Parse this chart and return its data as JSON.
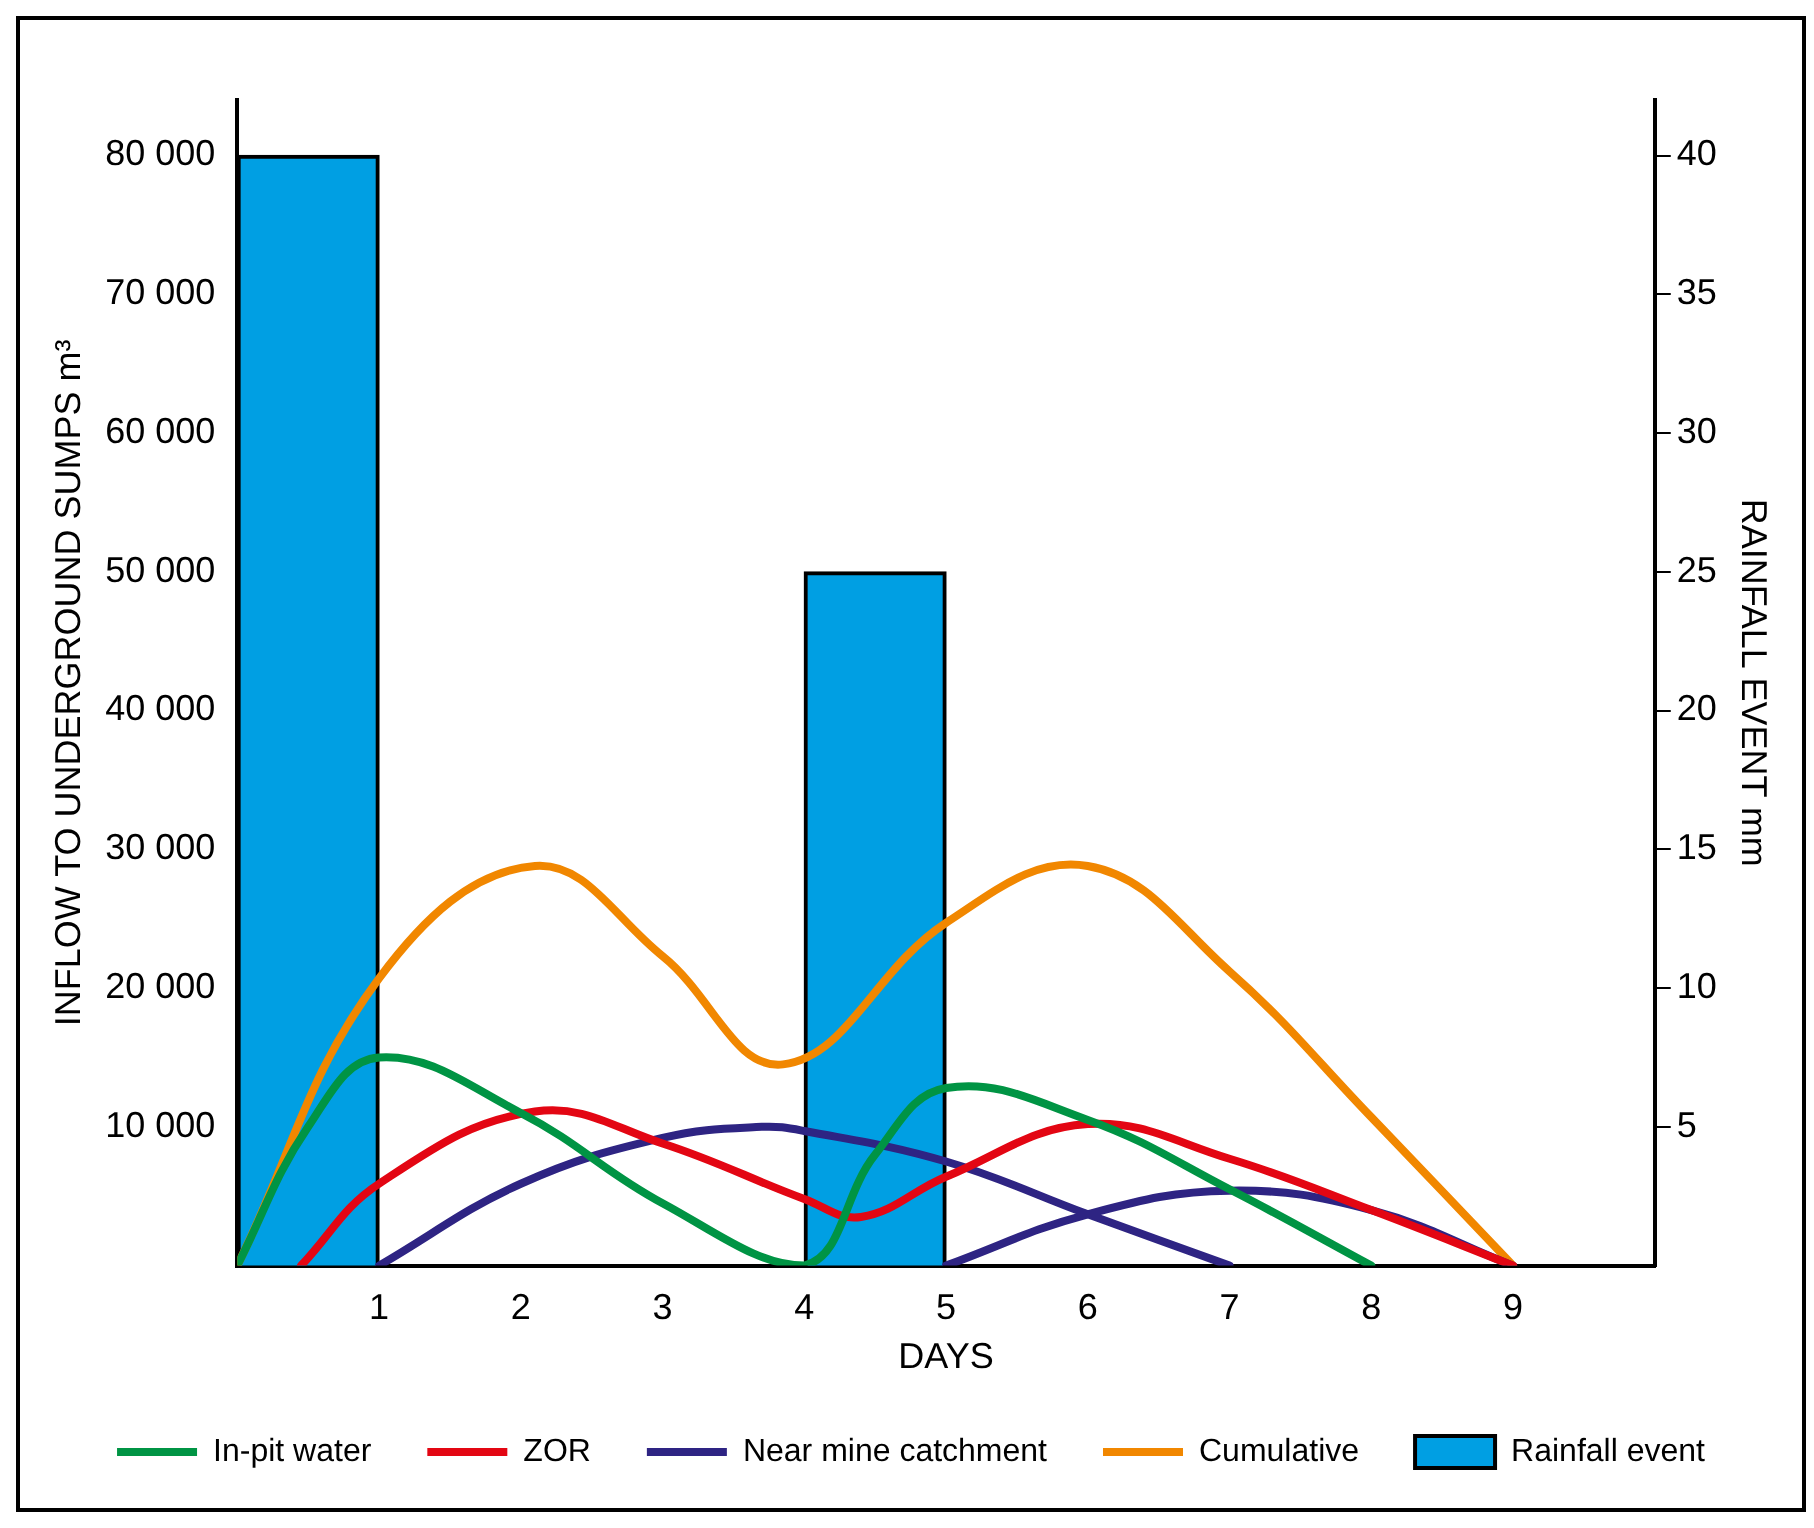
{
  "chart_data": {
    "type": "line",
    "xlabel": "DAYS",
    "ylabel": "INFLOW TO UNDERGROUND SUMPS m³",
    "y2label": "RAINFALL EVENT mm",
    "xlim": [
      0,
      10
    ],
    "xticks": [
      1,
      2,
      3,
      4,
      5,
      6,
      7,
      8,
      9
    ],
    "ylim": [
      0,
      84000
    ],
    "yticks": [
      {
        "value": 10000,
        "label": "10 000"
      },
      {
        "value": 20000,
        "label": "20 000"
      },
      {
        "value": 30000,
        "label": "30 000"
      },
      {
        "value": 40000,
        "label": "40 000"
      },
      {
        "value": 50000,
        "label": "50 000"
      },
      {
        "value": 60000,
        "label": "60 000"
      },
      {
        "value": 70000,
        "label": "70 000"
      },
      {
        "value": 80000,
        "label": "80 000"
      }
    ],
    "y2lim": [
      0,
      42
    ],
    "y2ticks": [
      5,
      10,
      15,
      20,
      25,
      30,
      35,
      40
    ],
    "series": [
      {
        "name": "In-pit water",
        "color": "#009444",
        "x": [
          0,
          0.5,
          1,
          2,
          3,
          4,
          4.5,
          5,
          6,
          7,
          8
        ],
        "values": [
          0,
          10000,
          15000,
          11000,
          4500,
          0,
          8000,
          12800,
          10500,
          5500,
          0
        ]
      },
      {
        "name": "ZOR",
        "color": "#e30613",
        "x": [
          0.45,
          1,
          2.1,
          3,
          4,
          4.4,
          5,
          6,
          7,
          8,
          9
        ],
        "values": [
          0,
          5900,
          11100,
          8800,
          4800,
          3500,
          6400,
          10200,
          7700,
          4000,
          0
        ]
      },
      {
        "name": "Near mine catchment",
        "color": "#2e2483",
        "x": [
          1,
          2,
          3,
          3.7,
          4,
          5,
          6,
          7,
          null,
          5,
          6,
          7,
          8,
          9
        ],
        "values": [
          0,
          5900,
          9200,
          10000,
          9700,
          7500,
          3700,
          0,
          null,
          0,
          3700,
          5400,
          4000,
          0
        ]
      },
      {
        "name": "Cumulative",
        "color": "#f18700",
        "x": [
          0,
          1,
          2.1,
          3,
          3.85,
          5,
          6,
          7,
          8,
          9
        ],
        "values": [
          0,
          20700,
          28800,
          22300,
          14500,
          24700,
          28800,
          21200,
          10700,
          0
        ]
      },
      {
        "name": "Rainfall event",
        "type": "bar",
        "axis": "y2",
        "color": "#009fe3",
        "x": [
          0.5,
          4.5
        ],
        "values": [
          40,
          25
        ]
      }
    ],
    "marker": "none",
    "grid": false,
    "legend": "bottom"
  }
}
